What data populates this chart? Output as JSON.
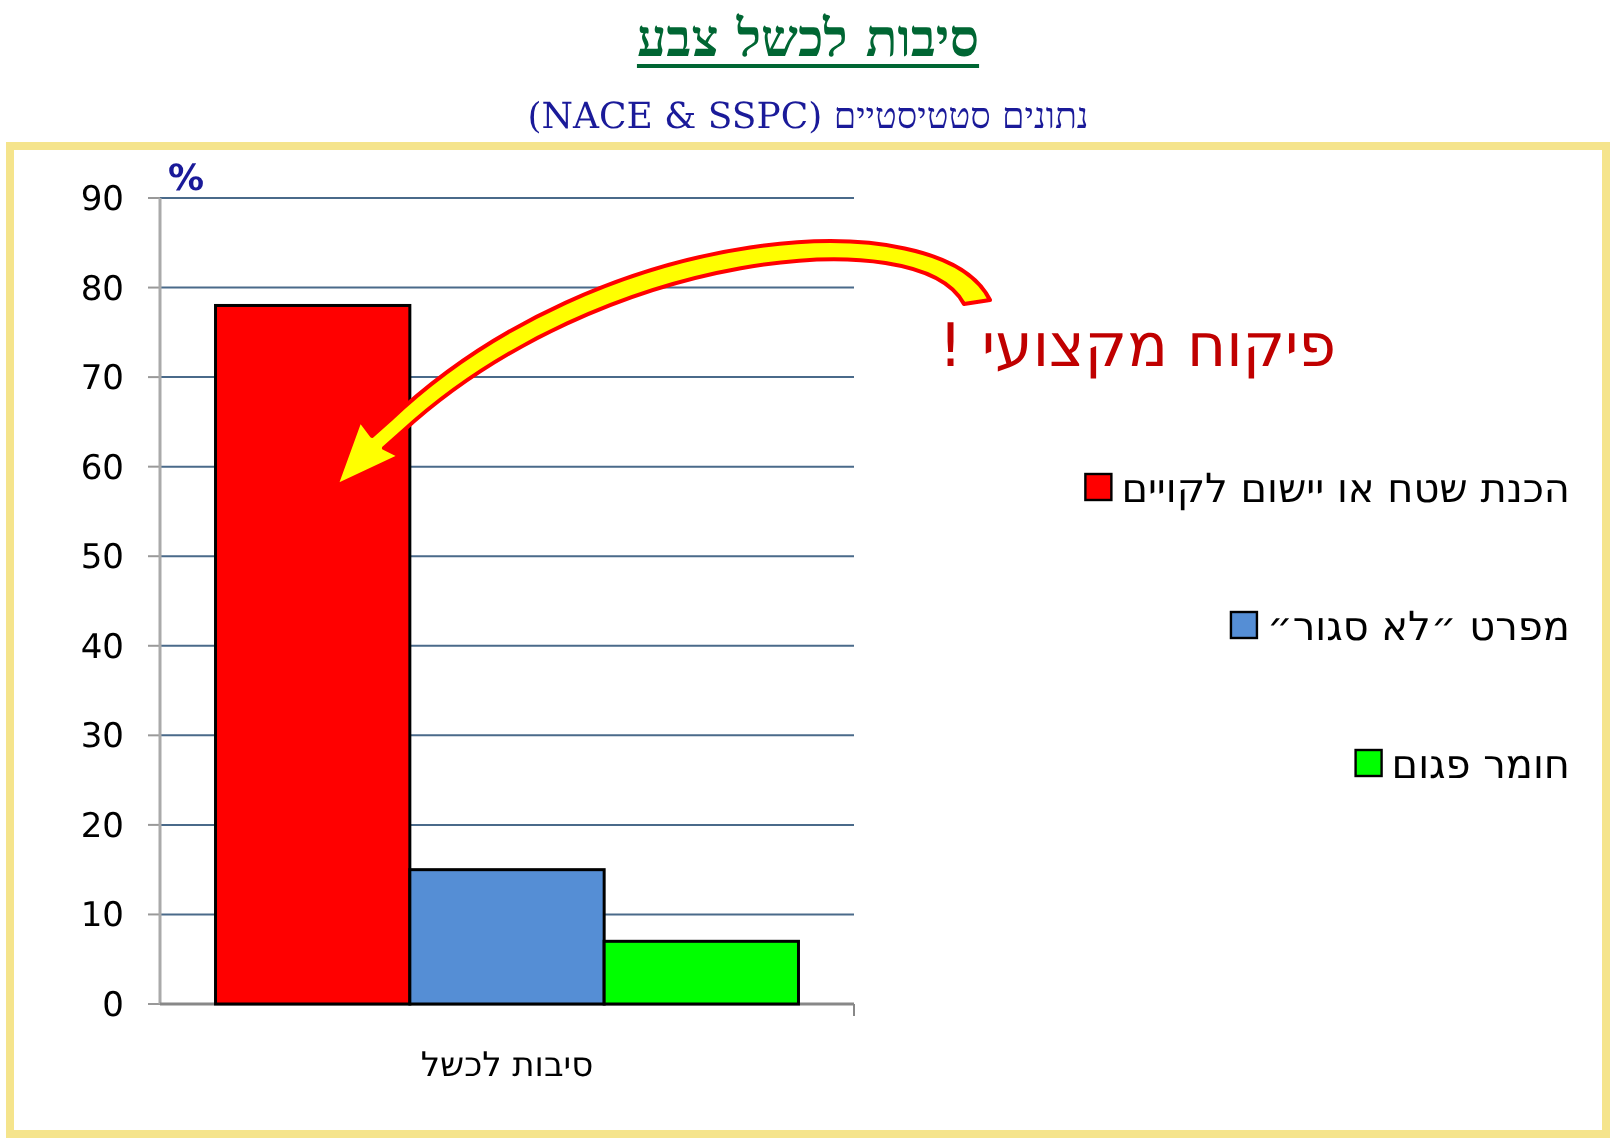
{
  "chart_data": {
    "type": "bar",
    "title": "סיבות לכשל צבע",
    "subtitle": "נתונים סטטיסטיים (NACE & SSPC)",
    "ylabel": "%",
    "categories": [
      "סיבות לכשל"
    ],
    "series": [
      {
        "name": "הכנת שטח או יישום לקויים",
        "color": "#ff0000",
        "values": [
          78
        ]
      },
      {
        "name": "מפרט ״לא סגור״",
        "color": "#558ed5",
        "values": [
          15
        ]
      },
      {
        "name": "חומר פגום",
        "color": "#00ff00",
        "values": [
          7
        ]
      }
    ],
    "ylim": [
      0,
      90
    ],
    "yticks": [
      0,
      10,
      20,
      30,
      40,
      50,
      60,
      70,
      80,
      90
    ],
    "grid": "y",
    "legend": "right",
    "annotations": [
      "פיקוח מקצועי !"
    ]
  }
}
